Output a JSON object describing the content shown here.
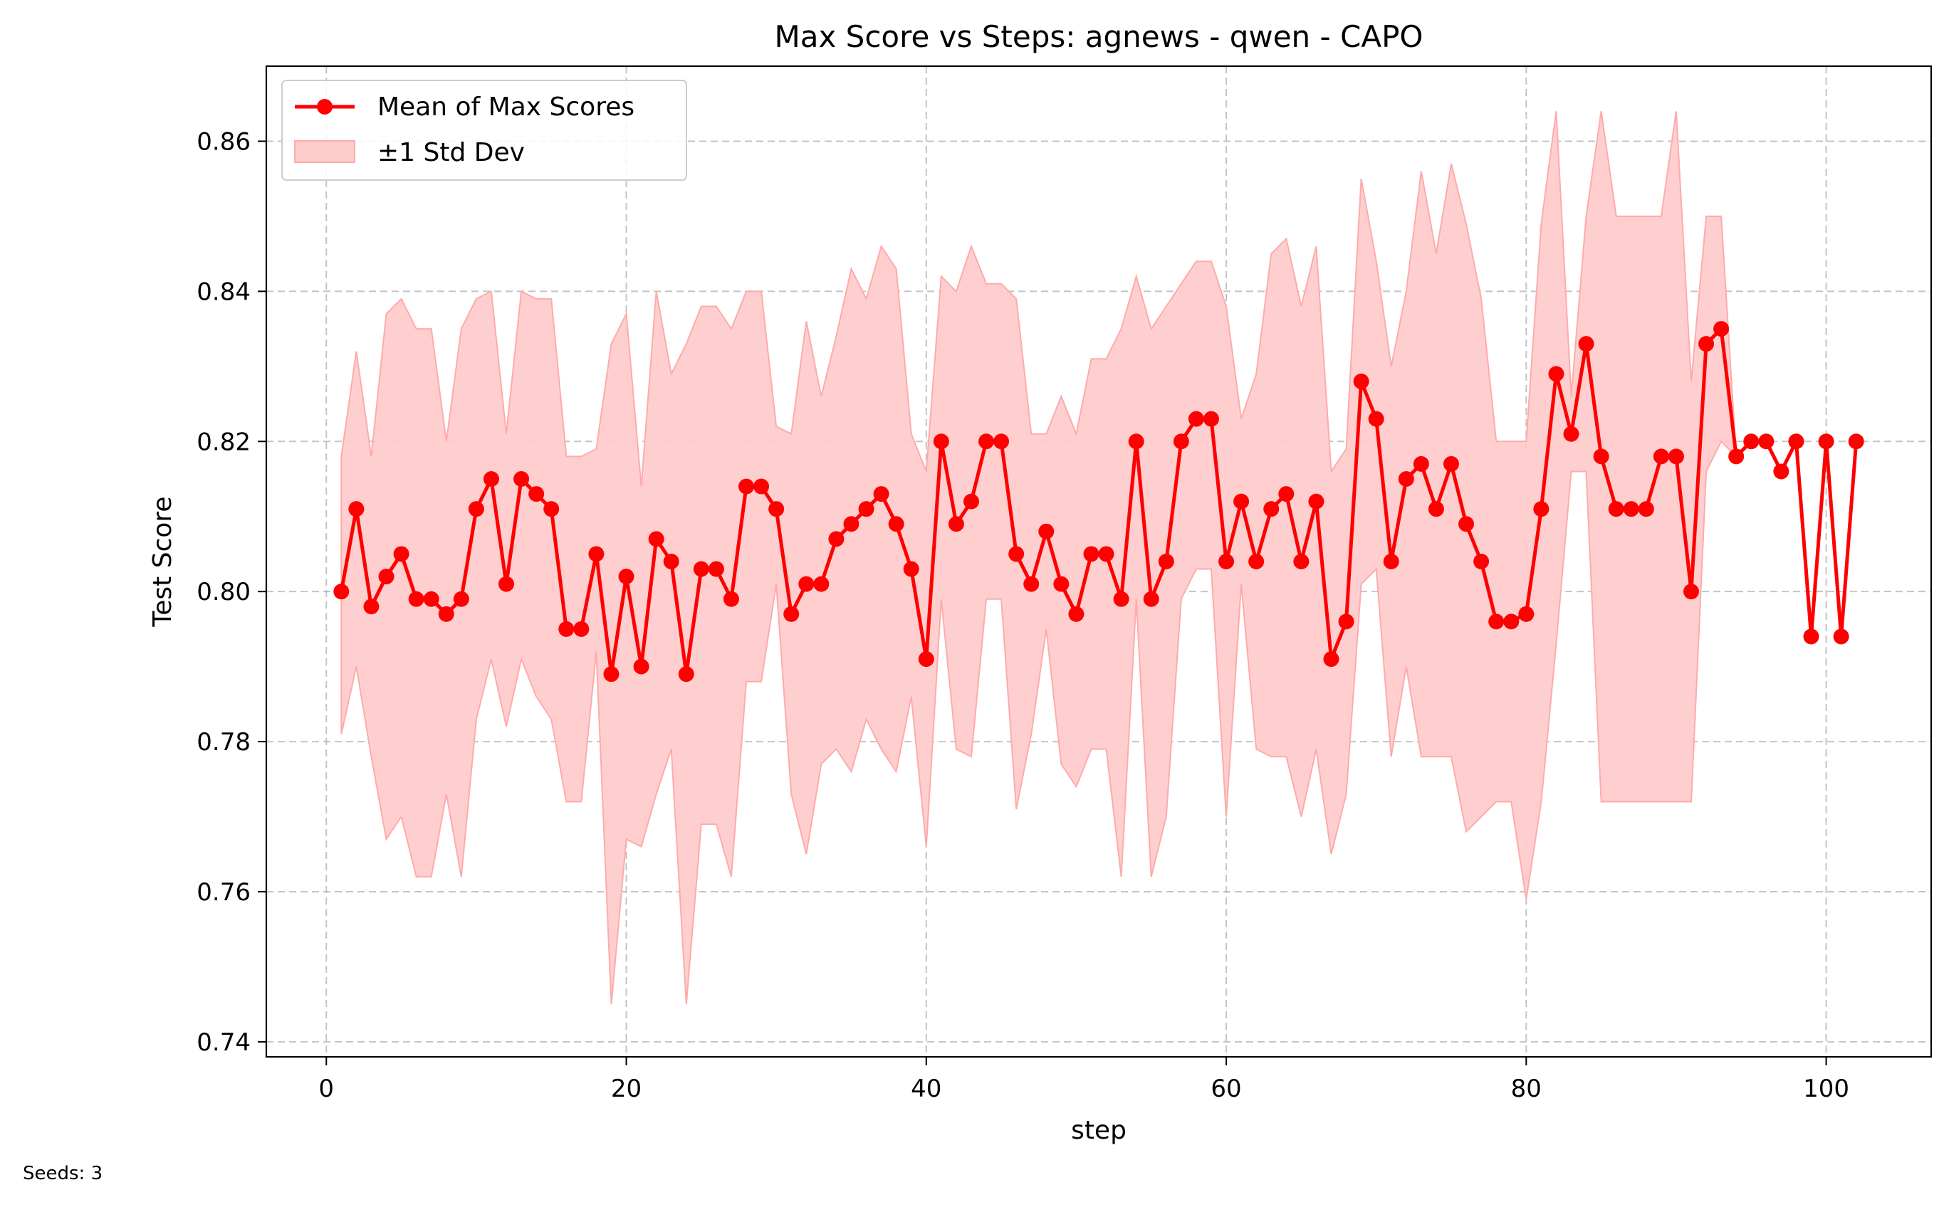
{
  "chart_data": {
    "type": "line",
    "title": "Max Score vs Steps: agnews - qwen - CAPO",
    "xlabel": "step",
    "ylabel": "Test Score",
    "xlim": [
      -4,
      107
    ],
    "ylim": [
      0.738,
      0.87
    ],
    "xticks": [
      0,
      20,
      40,
      60,
      80,
      100
    ],
    "yticks": [
      0.74,
      0.76,
      0.78,
      0.8,
      0.82,
      0.84,
      0.86
    ],
    "xtick_labels": [
      "0",
      "20",
      "40",
      "60",
      "80",
      "100"
    ],
    "ytick_labels": [
      "0.74",
      "0.76",
      "0.78",
      "0.80",
      "0.82",
      "0.84",
      "0.86"
    ],
    "grid": true,
    "legend_position": "top-left",
    "colors": {
      "line": "#ff0000",
      "band": "#ffcccc",
      "band_edge": "#ffaaaa",
      "grid": "#b0b0b0"
    },
    "series": [
      {
        "name": "Mean of Max Scores",
        "x": [
          1,
          2,
          3,
          4,
          5,
          6,
          7,
          8,
          9,
          10,
          11,
          12,
          13,
          14,
          15,
          16,
          17,
          18,
          19,
          20,
          21,
          22,
          23,
          24,
          25,
          26,
          27,
          28,
          29,
          30,
          31,
          32,
          33,
          34,
          35,
          36,
          37,
          38,
          39,
          40,
          41,
          42,
          43,
          44,
          45,
          46,
          47,
          48,
          49,
          50,
          51,
          52,
          53,
          54,
          55,
          56,
          57,
          58,
          59,
          60,
          61,
          62,
          63,
          64,
          65,
          66,
          67,
          68,
          69,
          70,
          71,
          72,
          73,
          74,
          75,
          76,
          77,
          78,
          79,
          80,
          81,
          82,
          83,
          84,
          85,
          86,
          87,
          88,
          89,
          90,
          91,
          92,
          93,
          94,
          95,
          96,
          97,
          98,
          99,
          100,
          101,
          102
        ],
        "y": [
          0.8,
          0.811,
          0.798,
          0.802,
          0.805,
          0.799,
          0.799,
          0.797,
          0.799,
          0.811,
          0.815,
          0.801,
          0.815,
          0.813,
          0.811,
          0.795,
          0.795,
          0.805,
          0.789,
          0.802,
          0.79,
          0.807,
          0.804,
          0.789,
          0.803,
          0.803,
          0.799,
          0.814,
          0.814,
          0.811,
          0.797,
          0.801,
          0.801,
          0.807,
          0.809,
          0.811,
          0.813,
          0.809,
          0.803,
          0.791,
          0.82,
          0.809,
          0.812,
          0.82,
          0.82,
          0.805,
          0.801,
          0.808,
          0.801,
          0.797,
          0.805,
          0.805,
          0.799,
          0.82,
          0.799,
          0.804,
          0.82,
          0.823,
          0.823,
          0.804,
          0.812,
          0.804,
          0.811,
          0.813,
          0.804,
          0.812,
          0.791,
          0.796,
          0.828,
          0.823,
          0.804,
          0.815,
          0.817,
          0.811,
          0.817,
          0.809,
          0.804,
          0.796,
          0.796,
          0.797,
          0.811,
          0.829,
          0.821,
          0.833,
          0.818,
          0.811,
          0.811,
          0.811,
          0.818,
          0.818,
          0.8,
          0.833,
          0.835,
          0.818,
          0.82,
          0.82,
          0.816,
          0.82,
          0.794,
          0.82,
          0.794,
          0.82
        ]
      },
      {
        "name": "±1 Std Dev",
        "x": [
          1,
          2,
          3,
          4,
          5,
          6,
          7,
          8,
          9,
          10,
          11,
          12,
          13,
          14,
          15,
          16,
          17,
          18,
          19,
          20,
          21,
          22,
          23,
          24,
          25,
          26,
          27,
          28,
          29,
          30,
          31,
          32,
          33,
          34,
          35,
          36,
          37,
          38,
          39,
          40,
          41,
          42,
          43,
          44,
          45,
          46,
          47,
          48,
          49,
          50,
          51,
          52,
          53,
          54,
          55,
          56,
          57,
          58,
          59,
          60,
          61,
          62,
          63,
          64,
          65,
          66,
          67,
          68,
          69,
          70,
          71,
          72,
          73,
          74,
          75,
          76,
          77,
          78,
          79,
          80,
          81,
          82,
          83,
          84,
          85,
          86,
          87,
          88,
          89,
          90,
          91,
          92,
          93,
          94,
          95,
          96,
          97,
          98,
          99,
          100,
          101,
          102
        ],
        "lower": [
          0.781,
          0.79,
          0.778,
          0.767,
          0.77,
          0.762,
          0.762,
          0.773,
          0.762,
          0.783,
          0.791,
          0.782,
          0.791,
          0.786,
          0.783,
          0.772,
          0.772,
          0.792,
          0.745,
          0.767,
          0.766,
          0.773,
          0.779,
          0.745,
          0.769,
          0.769,
          0.762,
          0.788,
          0.788,
          0.801,
          0.773,
          0.765,
          0.777,
          0.779,
          0.776,
          0.783,
          0.779,
          0.776,
          0.786,
          0.766,
          0.799,
          0.779,
          0.778,
          0.799,
          0.799,
          0.771,
          0.781,
          0.795,
          0.777,
          0.774,
          0.779,
          0.779,
          0.762,
          0.799,
          0.762,
          0.77,
          0.799,
          0.803,
          0.803,
          0.77,
          0.801,
          0.779,
          0.778,
          0.778,
          0.77,
          0.779,
          0.765,
          0.773,
          0.801,
          0.803,
          0.778,
          0.79,
          0.778,
          0.778,
          0.778,
          0.768,
          0.77,
          0.772,
          0.772,
          0.759,
          0.772,
          0.793,
          0.816,
          0.816,
          0.772,
          0.772,
          0.772,
          0.772,
          0.772,
          0.772,
          0.772,
          0.816,
          0.82,
          0.818,
          0.82,
          0.82,
          0.816,
          0.82,
          0.794,
          0.82,
          0.794,
          0.82
        ],
        "upper": [
          0.818,
          0.832,
          0.818,
          0.837,
          0.839,
          0.835,
          0.835,
          0.82,
          0.835,
          0.839,
          0.84,
          0.821,
          0.84,
          0.839,
          0.839,
          0.818,
          0.818,
          0.819,
          0.833,
          0.837,
          0.814,
          0.84,
          0.829,
          0.833,
          0.838,
          0.838,
          0.835,
          0.84,
          0.84,
          0.822,
          0.821,
          0.836,
          0.826,
          0.834,
          0.843,
          0.839,
          0.846,
          0.843,
          0.821,
          0.816,
          0.842,
          0.84,
          0.846,
          0.841,
          0.841,
          0.839,
          0.821,
          0.821,
          0.826,
          0.821,
          0.831,
          0.831,
          0.835,
          0.842,
          0.835,
          0.838,
          0.841,
          0.844,
          0.844,
          0.838,
          0.823,
          0.829,
          0.845,
          0.847,
          0.838,
          0.846,
          0.816,
          0.819,
          0.855,
          0.844,
          0.83,
          0.84,
          0.856,
          0.845,
          0.857,
          0.849,
          0.839,
          0.82,
          0.82,
          0.82,
          0.849,
          0.864,
          0.826,
          0.85,
          0.864,
          0.85,
          0.85,
          0.85,
          0.85,
          0.864,
          0.828,
          0.85,
          0.85,
          0.818,
          0.82,
          0.82,
          0.816,
          0.82,
          0.794,
          0.82,
          0.794,
          0.82
        ]
      }
    ]
  },
  "footnote": "Seeds: 3"
}
